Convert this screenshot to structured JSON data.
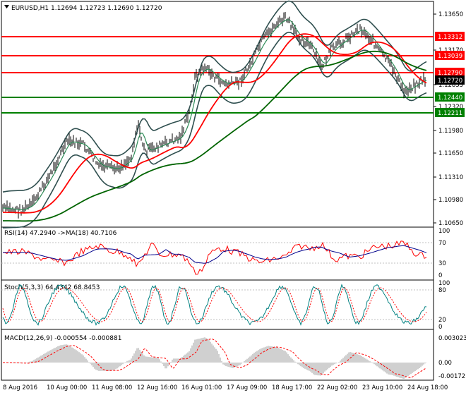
{
  "header": {
    "symbol": "EURUSD,H1",
    "ohlc": "1.12694 1.12723 1.12690 1.12720"
  },
  "price_axis": {
    "labels": [
      "1.13650",
      "1.13170",
      "1.12855",
      "1.12320",
      "1.11980",
      "1.11650",
      "1.11310",
      "1.10980",
      "1.10650"
    ],
    "levels": [
      {
        "value": "1.13312",
        "kind": "resistance",
        "color": "#ff0000"
      },
      {
        "value": "1.13039",
        "kind": "resistance",
        "color": "#ff0000"
      },
      {
        "value": "1.12790",
        "kind": "resistance",
        "color": "#ff0000"
      },
      {
        "value": "1.12720",
        "kind": "current",
        "color": "#000000"
      },
      {
        "value": "1.12440",
        "kind": "support",
        "color": "#008000"
      },
      {
        "value": "1.12211",
        "kind": "support",
        "color": "#008000"
      }
    ]
  },
  "rsi": {
    "title": "RSI(14) 47.2940 ->MA(18) 40.7106",
    "labels": [
      "100",
      "70",
      "30",
      "0"
    ]
  },
  "stoch": {
    "title": "Stoch(5,3,3) 64.4342 68.8453",
    "labels": [
      "100",
      "80",
      "20",
      "0"
    ]
  },
  "macd": {
    "title": "MACD(12,26,9) -0.000554 -0.000881",
    "labels": [
      "0.003023",
      "0.00",
      "-0.001721"
    ]
  },
  "time_axis": {
    "labels": [
      "8 Aug 2016",
      "10 Aug 00:00",
      "11 Aug 08:00",
      "12 Aug 16:00",
      "16 Aug 01:00",
      "17 Aug 09:00",
      "18 Aug 17:00",
      "22 Aug 02:00",
      "23 Aug 10:00",
      "24 Aug 18:00"
    ]
  },
  "colors": {
    "price_bar": "#000000",
    "bollinger": "#2f4f4f",
    "ma_red": "#ff0000",
    "ma_green": "#006400",
    "ma_fast_green": "#2e8b57",
    "rsi_line": "#ff0000",
    "rsi_ma": "#00008b",
    "stoch_main": "#008080",
    "stoch_signal": "#ff0000",
    "macd_hist": "#a0a0a0",
    "macd_signal": "#ff0000"
  }
}
